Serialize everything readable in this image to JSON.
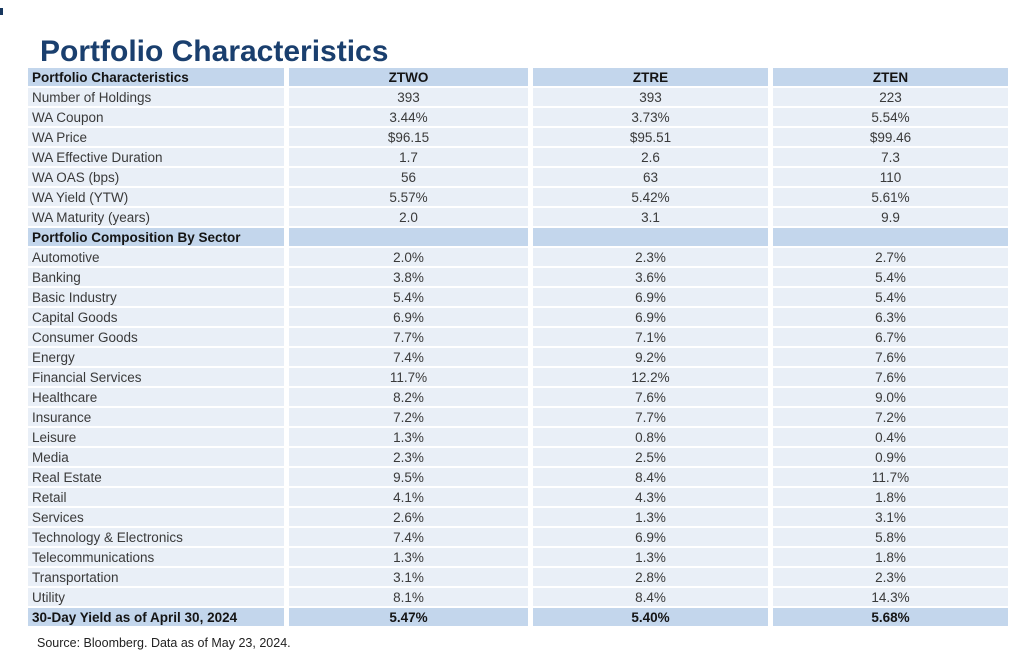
{
  "page_title": "Portfolio Characteristics",
  "source_note": "Source: Bloomberg. Data as of May 23, 2024.",
  "colors": {
    "title_text": "#1a3f6e",
    "header_row_bg": "#c3d6ec",
    "data_row_bg": "#e9eff7",
    "body_text": "#3a3a3a",
    "bold_text": "#141414"
  },
  "table": {
    "header": {
      "label": "Portfolio Characteristics",
      "columns": [
        "ZTWO",
        "ZTRE",
        "ZTEN"
      ]
    },
    "characteristics": [
      {
        "label": "Number of Holdings",
        "values": [
          "393",
          "393",
          "223"
        ]
      },
      {
        "label": "WA Coupon",
        "values": [
          "3.44%",
          "3.73%",
          "5.54%"
        ]
      },
      {
        "label": "WA Price",
        "values": [
          "$96.15",
          "$95.51",
          "$99.46"
        ]
      },
      {
        "label": "WA Effective Duration",
        "values": [
          "1.7",
          "2.6",
          "7.3"
        ]
      },
      {
        "label": "WA OAS (bps)",
        "values": [
          "56",
          "63",
          "110"
        ]
      },
      {
        "label": "WA Yield (YTW)",
        "values": [
          "5.57%",
          "5.42%",
          "5.61%"
        ]
      },
      {
        "label": "WA Maturity (years)",
        "values": [
          "2.0",
          "3.1",
          "9.9"
        ]
      }
    ],
    "section_header": {
      "label": "Portfolio Composition By Sector",
      "values": [
        "",
        "",
        ""
      ]
    },
    "sectors": [
      {
        "label": "Automotive",
        "values": [
          "2.0%",
          "2.3%",
          "2.7%"
        ]
      },
      {
        "label": "Banking",
        "values": [
          "3.8%",
          "3.6%",
          "5.4%"
        ]
      },
      {
        "label": "Basic Industry",
        "values": [
          "5.4%",
          "6.9%",
          "5.4%"
        ]
      },
      {
        "label": "Capital Goods",
        "values": [
          "6.9%",
          "6.9%",
          "6.3%"
        ]
      },
      {
        "label": "Consumer Goods",
        "values": [
          "7.7%",
          "7.1%",
          "6.7%"
        ]
      },
      {
        "label": "Energy",
        "values": [
          "7.4%",
          "9.2%",
          "7.6%"
        ]
      },
      {
        "label": "Financial Services",
        "values": [
          "11.7%",
          "12.2%",
          "7.6%"
        ]
      },
      {
        "label": "Healthcare",
        "values": [
          "8.2%",
          "7.6%",
          "9.0%"
        ]
      },
      {
        "label": "Insurance",
        "values": [
          "7.2%",
          "7.7%",
          "7.2%"
        ]
      },
      {
        "label": "Leisure",
        "values": [
          "1.3%",
          "0.8%",
          "0.4%"
        ]
      },
      {
        "label": "Media",
        "values": [
          "2.3%",
          "2.5%",
          "0.9%"
        ]
      },
      {
        "label": "Real Estate",
        "values": [
          "9.5%",
          "8.4%",
          "11.7%"
        ]
      },
      {
        "label": "Retail",
        "values": [
          "4.1%",
          "4.3%",
          "1.8%"
        ]
      },
      {
        "label": "Services",
        "values": [
          "2.6%",
          "1.3%",
          "3.1%"
        ]
      },
      {
        "label": "Technology & Electronics",
        "values": [
          "7.4%",
          "6.9%",
          "5.8%"
        ]
      },
      {
        "label": "Telecommunications",
        "values": [
          "1.3%",
          "1.3%",
          "1.8%"
        ]
      },
      {
        "label": "Transportation",
        "values": [
          "3.1%",
          "2.8%",
          "2.3%"
        ]
      },
      {
        "label": "Utility",
        "values": [
          "8.1%",
          "8.4%",
          "14.3%"
        ]
      }
    ],
    "footer": {
      "label": "30-Day Yield as of April 30, 2024",
      "values": [
        "5.47%",
        "5.40%",
        "5.68%"
      ]
    }
  }
}
